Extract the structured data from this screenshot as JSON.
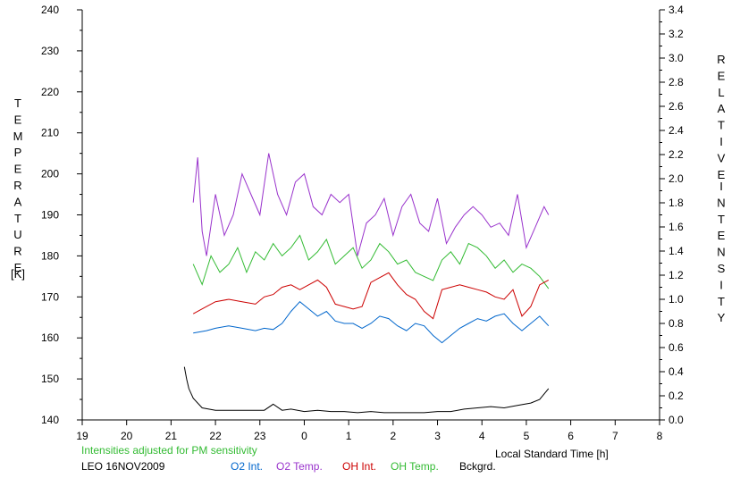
{
  "chart_data": {
    "type": "line",
    "left_axis": {
      "label_letters": [
        "T",
        "E",
        "M",
        "P",
        "E",
        "R",
        "A",
        "T",
        "U",
        "R",
        "E"
      ],
      "unit": "[K]",
      "ylim": [
        140,
        240
      ],
      "ticks": [
        "140",
        "150",
        "160",
        "170",
        "180",
        "190",
        "200",
        "210",
        "220",
        "230",
        "240"
      ]
    },
    "right_axis": {
      "label_letters_1": [
        "R",
        "E",
        "L",
        "A",
        "T",
        "I",
        "V",
        "E"
      ],
      "label_letters_2": [
        "I",
        "N",
        "T",
        "E",
        "N",
        "S",
        "I",
        "T",
        "Y"
      ],
      "ylim": [
        0.0,
        3.4
      ],
      "ticks": [
        "0.0",
        "0.2",
        "0.4",
        "0.6",
        "0.8",
        "1.0",
        "1.2",
        "1.4",
        "1.6",
        "1.8",
        "2.0",
        "2.2",
        "2.4",
        "2.6",
        "2.8",
        "3.0",
        "3.2",
        "3.4"
      ]
    },
    "x_axis": {
      "label": "Local Standard Time [h]",
      "xlim": [
        19,
        32
      ],
      "ticks": [
        "19",
        "20",
        "21",
        "22",
        "23",
        "0",
        "1",
        "2",
        "3",
        "4",
        "5",
        "6",
        "7",
        "8"
      ]
    },
    "series": [
      {
        "name": "O2 Int.",
        "color": "#0066cc",
        "axis": "right",
        "x": [
          21.5,
          21.8,
          22.0,
          22.3,
          22.6,
          22.9,
          23.1,
          23.3,
          23.5,
          23.7,
          23.9,
          24.1,
          24.3,
          24.5,
          24.7,
          24.9,
          25.1,
          25.3,
          25.5,
          25.7,
          25.9,
          26.1,
          26.3,
          26.5,
          26.7,
          26.9,
          27.1,
          27.3,
          27.5,
          27.7,
          27.9,
          28.1,
          28.3,
          28.5,
          28.7,
          28.9,
          29.1,
          29.3,
          29.5
        ],
        "y": [
          0.72,
          0.74,
          0.76,
          0.78,
          0.76,
          0.74,
          0.76,
          0.75,
          0.8,
          0.9,
          0.98,
          0.92,
          0.86,
          0.9,
          0.82,
          0.8,
          0.8,
          0.76,
          0.8,
          0.86,
          0.84,
          0.78,
          0.74,
          0.8,
          0.78,
          0.7,
          0.64,
          0.7,
          0.76,
          0.8,
          0.84,
          0.82,
          0.86,
          0.88,
          0.8,
          0.74,
          0.8,
          0.86,
          0.78
        ]
      },
      {
        "name": "O2 Temp.",
        "color": "#9933cc",
        "axis": "left",
        "x": [
          21.5,
          21.6,
          21.7,
          21.8,
          22.0,
          22.2,
          22.4,
          22.6,
          22.8,
          23.0,
          23.2,
          23.4,
          23.6,
          23.8,
          24.0,
          24.2,
          24.4,
          24.6,
          24.8,
          25.0,
          25.2,
          25.4,
          25.6,
          25.8,
          26.0,
          26.2,
          26.4,
          26.6,
          26.8,
          27.0,
          27.2,
          27.4,
          27.6,
          27.8,
          28.0,
          28.2,
          28.4,
          28.6,
          28.8,
          29.0,
          29.2,
          29.4,
          29.5
        ],
        "y": [
          193,
          204,
          186,
          180,
          195,
          185,
          190,
          200,
          195,
          190,
          205,
          195,
          190,
          198,
          200,
          192,
          190,
          195,
          193,
          195,
          180,
          188,
          190,
          194,
          185,
          192,
          195,
          188,
          186,
          194,
          183,
          187,
          190,
          192,
          190,
          187,
          188,
          185,
          195,
          182,
          187,
          192,
          190
        ]
      },
      {
        "name": "OH Int.",
        "color": "#cc0000",
        "axis": "right",
        "x": [
          21.5,
          21.8,
          22.0,
          22.3,
          22.6,
          22.9,
          23.1,
          23.3,
          23.5,
          23.7,
          23.9,
          24.1,
          24.3,
          24.5,
          24.7,
          24.9,
          25.1,
          25.3,
          25.5,
          25.7,
          25.9,
          26.1,
          26.3,
          26.5,
          26.7,
          26.9,
          27.1,
          27.3,
          27.5,
          27.7,
          27.9,
          28.1,
          28.3,
          28.5,
          28.7,
          28.9,
          29.1,
          29.3,
          29.5
        ],
        "y": [
          0.88,
          0.94,
          0.98,
          1.0,
          0.98,
          0.96,
          1.02,
          1.04,
          1.1,
          1.12,
          1.08,
          1.12,
          1.16,
          1.1,
          0.96,
          0.94,
          0.92,
          0.94,
          1.14,
          1.18,
          1.22,
          1.12,
          1.04,
          1.0,
          0.9,
          0.84,
          1.08,
          1.1,
          1.12,
          1.1,
          1.08,
          1.06,
          1.02,
          1.0,
          1.08,
          0.86,
          0.94,
          1.12,
          1.16
        ]
      },
      {
        "name": "OH Temp.",
        "color": "#33bb33",
        "axis": "left",
        "x": [
          21.5,
          21.7,
          21.9,
          22.1,
          22.3,
          22.5,
          22.7,
          22.9,
          23.1,
          23.3,
          23.5,
          23.7,
          23.9,
          24.1,
          24.3,
          24.5,
          24.7,
          24.9,
          25.1,
          25.3,
          25.5,
          25.7,
          25.9,
          26.1,
          26.3,
          26.5,
          26.7,
          26.9,
          27.1,
          27.3,
          27.5,
          27.7,
          27.9,
          28.1,
          28.3,
          28.5,
          28.7,
          28.9,
          29.1,
          29.3,
          29.5
        ],
        "y": [
          178,
          173,
          180,
          176,
          178,
          182,
          176,
          181,
          179,
          183,
          180,
          182,
          185,
          179,
          181,
          184,
          178,
          180,
          182,
          177,
          179,
          183,
          181,
          178,
          179,
          176,
          175,
          174,
          179,
          181,
          178,
          183,
          182,
          180,
          177,
          179,
          176,
          178,
          177,
          175,
          172
        ]
      },
      {
        "name": "Bckgrd.",
        "color": "#000000",
        "axis": "right",
        "x": [
          21.3,
          21.35,
          21.4,
          21.5,
          21.7,
          22.0,
          22.3,
          22.6,
          22.9,
          23.1,
          23.3,
          23.5,
          23.7,
          24.0,
          24.3,
          24.6,
          24.9,
          25.2,
          25.5,
          25.8,
          26.1,
          26.4,
          26.7,
          27.0,
          27.3,
          27.6,
          27.9,
          28.2,
          28.5,
          28.8,
          29.1,
          29.3,
          29.5
        ],
        "y": [
          0.44,
          0.34,
          0.26,
          0.18,
          0.1,
          0.08,
          0.08,
          0.08,
          0.08,
          0.08,
          0.13,
          0.08,
          0.09,
          0.07,
          0.08,
          0.07,
          0.07,
          0.06,
          0.07,
          0.06,
          0.06,
          0.06,
          0.06,
          0.07,
          0.07,
          0.09,
          0.1,
          0.11,
          0.1,
          0.12,
          0.14,
          0.17,
          0.26
        ]
      }
    ]
  },
  "annotation": "Intensities adjusted for PM sensitivity",
  "footer": {
    "station": "LEO 16NOV2009",
    "legend": [
      "O2 Int.",
      "O2 Temp.",
      "OH Int.",
      "OH Temp.",
      "Bckgrd."
    ]
  },
  "colors": {
    "o2_int": "#0066cc",
    "o2_temp": "#9933cc",
    "oh_int": "#cc0000",
    "oh_temp": "#33bb33",
    "bckgrd": "#000000",
    "annotation": "#33bb33"
  }
}
